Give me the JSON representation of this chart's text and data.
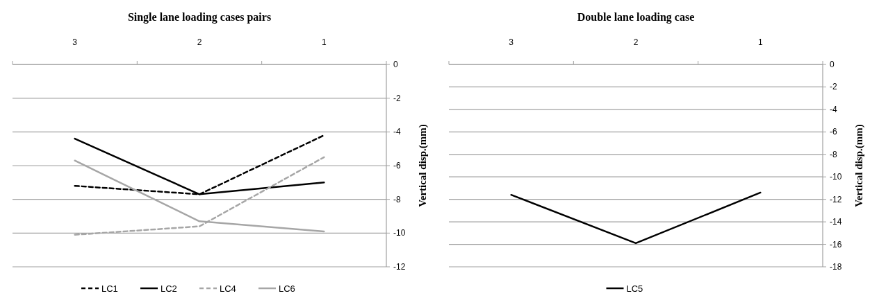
{
  "chart_data": [
    {
      "type": "line",
      "title": "Single lane loading cases pairs",
      "ylabel": "Vertical disp.(mm)",
      "categories": [
        "3",
        "2",
        "1"
      ],
      "ylim": [
        -12,
        0
      ],
      "yticks": [
        -12,
        -10,
        -8,
        -6,
        -4,
        -2,
        0
      ],
      "grid": "y",
      "legend": "bottom",
      "marker": "none",
      "series": [
        {
          "name": "LC1",
          "color": "#000000",
          "line_style": "dashed",
          "values": [
            -7.2,
            -7.7,
            -4.2
          ]
        },
        {
          "name": "LC2",
          "color": "#000000",
          "line_style": "solid",
          "values": [
            -4.4,
            -7.7,
            -7.0
          ]
        },
        {
          "name": "LC4",
          "color": "#a6a6a6",
          "line_style": "dashed",
          "values": [
            -10.1,
            -9.6,
            -5.5
          ]
        },
        {
          "name": "LC6",
          "color": "#a6a6a6",
          "line_style": "solid",
          "values": [
            -5.7,
            -9.3,
            -9.9
          ]
        }
      ]
    },
    {
      "type": "line",
      "title": "Double lane loading case",
      "ylabel": "Vertical disp.(mm)",
      "categories": [
        "3",
        "2",
        "1"
      ],
      "ylim": [
        -18,
        0
      ],
      "yticks": [
        -18,
        -16,
        -14,
        -12,
        -10,
        -8,
        -6,
        -4,
        -2,
        0
      ],
      "grid": "y",
      "legend": "bottom",
      "marker": "none",
      "series": [
        {
          "name": "LC5",
          "color": "#000000",
          "line_style": "solid",
          "values": [
            -11.6,
            -15.9,
            -11.4
          ]
        }
      ]
    }
  ]
}
